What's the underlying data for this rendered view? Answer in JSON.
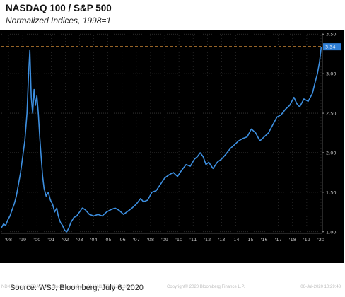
{
  "title": "NASDAQ 100 / S&P 500",
  "subtitle": "Normalized Indices, 1998=1",
  "source": "Source: WSJ, Bloomberg, July 6, 2020",
  "footer": {
    "left": "NDX Index (NASDAQ 100 Stock Index)  Daily 01JAN1998-06JUL2020",
    "center": "Copyright© 2020 Bloomberg Finance L.P.",
    "right": "06-Jul-2020 10:29:48"
  },
  "colors": {
    "background": "#000000",
    "line": "#3d8fe0",
    "reference_line": "#f0a040",
    "grid": "#3a3a3a",
    "axis_text": "#c8c8c8",
    "last_value_badge": "#2f7fd6"
  },
  "chart_data": {
    "type": "line",
    "title": "NASDAQ 100 / S&P 500",
    "subtitle": "Normalized Indices, 1998=1",
    "xlabel": "",
    "ylabel": "",
    "xlim": [
      1998.0,
      2020.6
    ],
    "ylim": [
      0.98,
      3.52
    ],
    "y_ticks": [
      1.0,
      1.5,
      2.0,
      2.5,
      3.0,
      3.5
    ],
    "y_tick_labels": [
      "1.00",
      "1.50",
      "2.00",
      "2.50",
      "3.00",
      "3.50"
    ],
    "x_ticks": [
      1998.5,
      1999.5,
      2000.5,
      2001.5,
      2002.5,
      2003.5,
      2004.5,
      2005.5,
      2006.5,
      2007.5,
      2008.5,
      2009.5,
      2010.5,
      2011.5,
      2012.5,
      2013.5,
      2014.5,
      2015.5,
      2016.5,
      2017.5,
      2018.5,
      2019.5,
      2020.5
    ],
    "x_tick_labels": [
      "'98",
      "'99",
      "'00",
      "'01",
      "'02",
      "'03",
      "'04",
      "'05",
      "'06",
      "'07",
      "'08",
      "'09",
      "'10",
      "'11",
      "'12",
      "'13",
      "'14",
      "'15",
      "'16",
      "'17",
      "'18",
      "'19",
      "'20"
    ],
    "reference_line": {
      "y": 3.34,
      "style": "dashed"
    },
    "last_value_label": "3.34",
    "grid": true,
    "series": [
      {
        "values": [
          [
            1998.0,
            1.05
          ],
          [
            1998.15,
            1.1
          ],
          [
            1998.3,
            1.08
          ],
          [
            1998.45,
            1.15
          ],
          [
            1998.6,
            1.2
          ],
          [
            1998.75,
            1.28
          ],
          [
            1998.9,
            1.35
          ],
          [
            1999.05,
            1.45
          ],
          [
            1999.2,
            1.6
          ],
          [
            1999.35,
            1.75
          ],
          [
            1999.5,
            1.95
          ],
          [
            1999.65,
            2.15
          ],
          [
            1999.8,
            2.5
          ],
          [
            1999.9,
            2.95
          ],
          [
            2000.0,
            3.3
          ],
          [
            2000.1,
            2.7
          ],
          [
            2000.2,
            2.5
          ],
          [
            2000.3,
            2.8
          ],
          [
            2000.4,
            2.6
          ],
          [
            2000.5,
            2.72
          ],
          [
            2000.6,
            2.5
          ],
          [
            2000.7,
            2.2
          ],
          [
            2000.8,
            1.95
          ],
          [
            2000.9,
            1.7
          ],
          [
            2001.0,
            1.55
          ],
          [
            2001.15,
            1.45
          ],
          [
            2001.3,
            1.5
          ],
          [
            2001.45,
            1.4
          ],
          [
            2001.6,
            1.35
          ],
          [
            2001.75,
            1.25
          ],
          [
            2001.9,
            1.3
          ],
          [
            2002.0,
            1.2
          ],
          [
            2002.15,
            1.12
          ],
          [
            2002.3,
            1.08
          ],
          [
            2002.45,
            1.02
          ],
          [
            2002.6,
            1.0
          ],
          [
            2002.75,
            1.05
          ],
          [
            2002.9,
            1.12
          ],
          [
            2003.1,
            1.18
          ],
          [
            2003.3,
            1.2
          ],
          [
            2003.5,
            1.25
          ],
          [
            2003.7,
            1.3
          ],
          [
            2003.9,
            1.28
          ],
          [
            2004.2,
            1.22
          ],
          [
            2004.5,
            1.2
          ],
          [
            2004.8,
            1.22
          ],
          [
            2005.1,
            1.2
          ],
          [
            2005.4,
            1.25
          ],
          [
            2005.7,
            1.28
          ],
          [
            2006.0,
            1.3
          ],
          [
            2006.3,
            1.27
          ],
          [
            2006.6,
            1.22
          ],
          [
            2006.9,
            1.26
          ],
          [
            2007.2,
            1.3
          ],
          [
            2007.5,
            1.35
          ],
          [
            2007.8,
            1.42
          ],
          [
            2008.0,
            1.38
          ],
          [
            2008.3,
            1.4
          ],
          [
            2008.6,
            1.5
          ],
          [
            2008.9,
            1.52
          ],
          [
            2009.2,
            1.6
          ],
          [
            2009.5,
            1.68
          ],
          [
            2009.8,
            1.72
          ],
          [
            2010.1,
            1.75
          ],
          [
            2010.4,
            1.7
          ],
          [
            2010.7,
            1.78
          ],
          [
            2011.0,
            1.85
          ],
          [
            2011.3,
            1.83
          ],
          [
            2011.6,
            1.92
          ],
          [
            2011.8,
            1.95
          ],
          [
            2012.0,
            2.0
          ],
          [
            2012.2,
            1.95
          ],
          [
            2012.4,
            1.85
          ],
          [
            2012.6,
            1.88
          ],
          [
            2012.9,
            1.8
          ],
          [
            2013.2,
            1.88
          ],
          [
            2013.5,
            1.92
          ],
          [
            2013.8,
            1.98
          ],
          [
            2014.1,
            2.05
          ],
          [
            2014.4,
            2.1
          ],
          [
            2014.7,
            2.15
          ],
          [
            2015.0,
            2.18
          ],
          [
            2015.3,
            2.2
          ],
          [
            2015.6,
            2.3
          ],
          [
            2015.9,
            2.25
          ],
          [
            2016.2,
            2.15
          ],
          [
            2016.5,
            2.2
          ],
          [
            2016.8,
            2.25
          ],
          [
            2017.1,
            2.35
          ],
          [
            2017.4,
            2.45
          ],
          [
            2017.7,
            2.48
          ],
          [
            2018.0,
            2.55
          ],
          [
            2018.3,
            2.6
          ],
          [
            2018.6,
            2.7
          ],
          [
            2018.8,
            2.62
          ],
          [
            2019.0,
            2.58
          ],
          [
            2019.3,
            2.68
          ],
          [
            2019.6,
            2.65
          ],
          [
            2019.9,
            2.75
          ],
          [
            2020.1,
            2.9
          ],
          [
            2020.25,
            3.0
          ],
          [
            2020.4,
            3.15
          ],
          [
            2020.52,
            3.34
          ]
        ]
      }
    ]
  }
}
